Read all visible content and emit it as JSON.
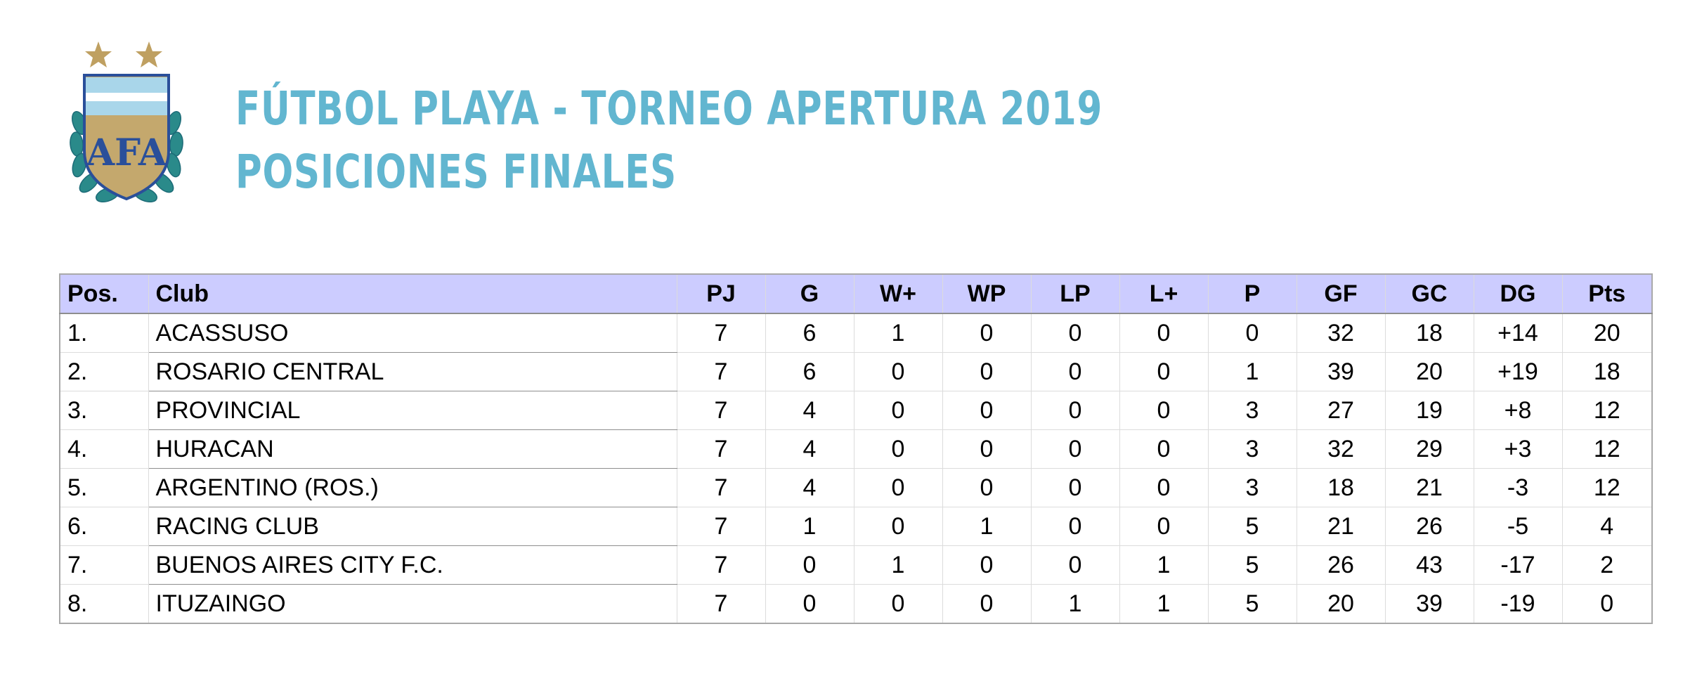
{
  "header": {
    "title_line1": "FÚTBOL PLAYA - TORNEO APERTURA 2019",
    "title_line2": "POSICIONES FINALES",
    "logo_text": "AFA"
  },
  "colors": {
    "title": "#62b6d0",
    "header_row": "#ccccff",
    "star": "#bfa061",
    "shield_gold": "#c4a86d",
    "shield_blue": "#2a4f9a",
    "laurel": "#2a8a8a"
  },
  "table": {
    "columns": [
      "Pos.",
      "Club",
      "PJ",
      "G",
      "W+",
      "WP",
      "LP",
      "L+",
      "P",
      "GF",
      "GC",
      "DG",
      "Pts"
    ],
    "rows": [
      [
        "1.",
        "ACASSUSO",
        "7",
        "6",
        "1",
        "0",
        "0",
        "0",
        "0",
        "32",
        "18",
        "+14",
        "20"
      ],
      [
        "2.",
        "ROSARIO CENTRAL",
        "7",
        "6",
        "0",
        "0",
        "0",
        "0",
        "1",
        "39",
        "20",
        "+19",
        "18"
      ],
      [
        "3.",
        "PROVINCIAL",
        "7",
        "4",
        "0",
        "0",
        "0",
        "0",
        "3",
        "27",
        "19",
        "+8",
        "12"
      ],
      [
        "4.",
        "HURACAN",
        "7",
        "4",
        "0",
        "0",
        "0",
        "0",
        "3",
        "32",
        "29",
        "+3",
        "12"
      ],
      [
        "5.",
        "ARGENTINO (ROS.)",
        "7",
        "4",
        "0",
        "0",
        "0",
        "0",
        "3",
        "18",
        "21",
        "-3",
        "12"
      ],
      [
        "6.",
        "RACING CLUB",
        "7",
        "1",
        "0",
        "1",
        "0",
        "0",
        "5",
        "21",
        "26",
        "-5",
        "4"
      ],
      [
        "7.",
        "BUENOS AIRES CITY F.C.",
        "7",
        "0",
        "1",
        "0",
        "0",
        "1",
        "5",
        "26",
        "43",
        "-17",
        "2"
      ],
      [
        "8.",
        "ITUZAINGO",
        "7",
        "0",
        "0",
        "0",
        "1",
        "1",
        "5",
        "20",
        "39",
        "-19",
        "0"
      ]
    ]
  }
}
